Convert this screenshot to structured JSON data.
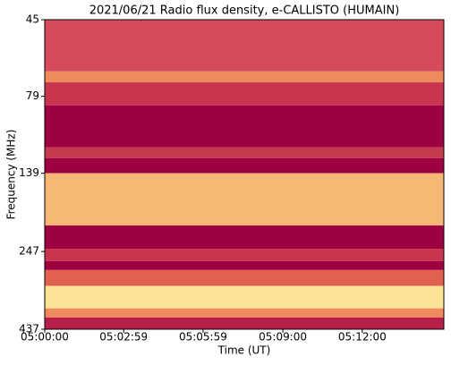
{
  "chart_data": {
    "type": "spectrogram",
    "title": "2021/06/21  Radio flux density, e-CALLISTO (HUMAIN)",
    "x_label": "Time (UT)",
    "y_label": "Frequency (MHz)",
    "xlim": [
      0,
      905
    ],
    "xticks": [
      {
        "value": 0,
        "label": "05:00:00"
      },
      {
        "value": 179,
        "label": "05:02:59"
      },
      {
        "value": 359,
        "label": "05:05:59"
      },
      {
        "value": 540,
        "label": "05:09:00"
      },
      {
        "value": 720,
        "label": "05:12:00"
      }
    ],
    "ylim": [
      45,
      437
    ],
    "y_log": true,
    "y_inverted": true,
    "yticks": [
      45,
      79,
      139,
      247,
      437
    ],
    "bands": [
      {
        "from": 45,
        "to": 65.8,
        "color": "#d64b5c"
      },
      {
        "from": 65.8,
        "to": 71.3,
        "color": "#ef8a5c"
      },
      {
        "from": 71.3,
        "to": 84.5,
        "color": "#c9354f"
      },
      {
        "from": 84.5,
        "to": 115,
        "color": "#9e0142"
      },
      {
        "from": 115,
        "to": 124.5,
        "color": "#c43a4e"
      },
      {
        "from": 124.5,
        "to": 139,
        "color": "#9e0142"
      },
      {
        "from": 139,
        "to": 204,
        "color": "#f6b874"
      },
      {
        "from": 204,
        "to": 242,
        "color": "#9e0142"
      },
      {
        "from": 242,
        "to": 265,
        "color": "#c9354f"
      },
      {
        "from": 265,
        "to": 283,
        "color": "#9e0142"
      },
      {
        "from": 283,
        "to": 318,
        "color": "#e0614f"
      },
      {
        "from": 318,
        "to": 375,
        "color": "#fbe297"
      },
      {
        "from": 375,
        "to": 401,
        "color": "#f08a5c"
      },
      {
        "from": 401,
        "to": 437,
        "color": "#b51f4a"
      }
    ]
  }
}
